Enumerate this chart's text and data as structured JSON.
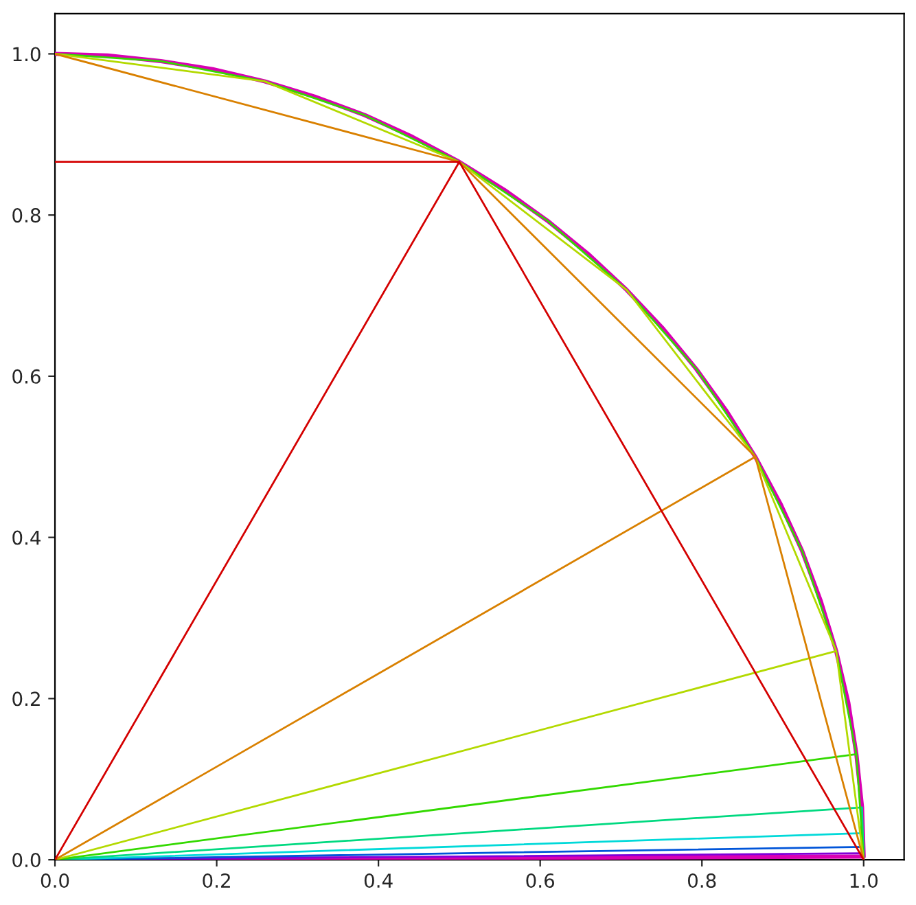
{
  "chart_data": {
    "type": "line",
    "xlim": [
      0,
      1.05
    ],
    "ylim": [
      0,
      1.05
    ],
    "xticks": [
      {
        "value": 0,
        "label": "0.0"
      },
      0.2,
      0.4,
      0.6,
      0.8,
      {
        "value": 1,
        "label": "1.0"
      }
    ],
    "yticks": [
      {
        "value": 0,
        "label": "0.0"
      },
      0.2,
      0.4,
      0.6,
      0.8,
      {
        "value": 1,
        "label": "1.0"
      }
    ],
    "grid": false,
    "marker": "none",
    "line_style": "solid",
    "series": [
      {
        "color": "#d40000",
        "x": [
          0,
          0.5,
          null,
          0,
          0.5,
          1
        ],
        "values": [
          0.866,
          0.866,
          null,
          0,
          0.866,
          0
        ]
      },
      {
        "color": "#d98000",
        "x": [
          0,
          0.5,
          0.866,
          1,
          null,
          0,
          0.866
        ],
        "values": [
          1,
          0.866,
          0.5,
          0,
          null,
          0,
          0.5
        ]
      },
      {
        "color": "#b3d900",
        "x": [
          0,
          0.259,
          0.5,
          0.707,
          0.866,
          0.966,
          1,
          null,
          0,
          0.966
        ],
        "values": [
          1,
          0.966,
          0.866,
          0.707,
          0.5,
          0.259,
          0,
          null,
          0,
          0.259
        ]
      },
      {
        "color": "#33d900",
        "x": [
          0,
          0.131,
          0.259,
          0.383,
          0.5,
          0.609,
          0.707,
          0.793,
          0.866,
          0.924,
          0.966,
          0.991,
          1,
          null,
          0,
          0.991
        ],
        "values": [
          1,
          0.991,
          0.966,
          0.924,
          0.866,
          0.793,
          0.707,
          0.609,
          0.5,
          0.383,
          0.259,
          0.131,
          0,
          null,
          0,
          0.131
        ]
      },
      {
        "color": "#00d980",
        "x": [
          0,
          0.998,
          1
        ],
        "values": [
          0,
          0.065,
          0
        ]
      },
      {
        "color": "#00d9d9",
        "x": [
          0,
          0.999,
          1
        ],
        "values": [
          0,
          0.033,
          0
        ]
      },
      {
        "color": "#0055d9",
        "x": [
          0,
          1,
          1
        ],
        "values": [
          0,
          0.016,
          0
        ]
      },
      {
        "color": "#8000d9",
        "x": [
          0,
          1,
          1
        ],
        "values": [
          0,
          0.008,
          0
        ]
      },
      {
        "color": "#d900b3",
        "x": [
          0,
          0.065,
          0.131,
          0.195,
          0.259,
          0.321,
          0.383,
          0.442,
          0.5,
          0.556,
          0.609,
          0.659,
          0.707,
          0.752,
          0.793,
          0.831,
          0.866,
          0.897,
          0.924,
          0.947,
          0.966,
          0.981,
          0.991,
          0.998,
          1,
          null,
          0,
          1
        ],
        "values": [
          1,
          0.998,
          0.991,
          0.981,
          0.966,
          0.947,
          0.924,
          0.897,
          0.866,
          0.831,
          0.793,
          0.752,
          0.707,
          0.659,
          0.609,
          0.556,
          0.5,
          0.442,
          0.383,
          0.321,
          0.259,
          0.195,
          0.131,
          0.065,
          0.004,
          null,
          0,
          0.004
        ]
      }
    ]
  }
}
